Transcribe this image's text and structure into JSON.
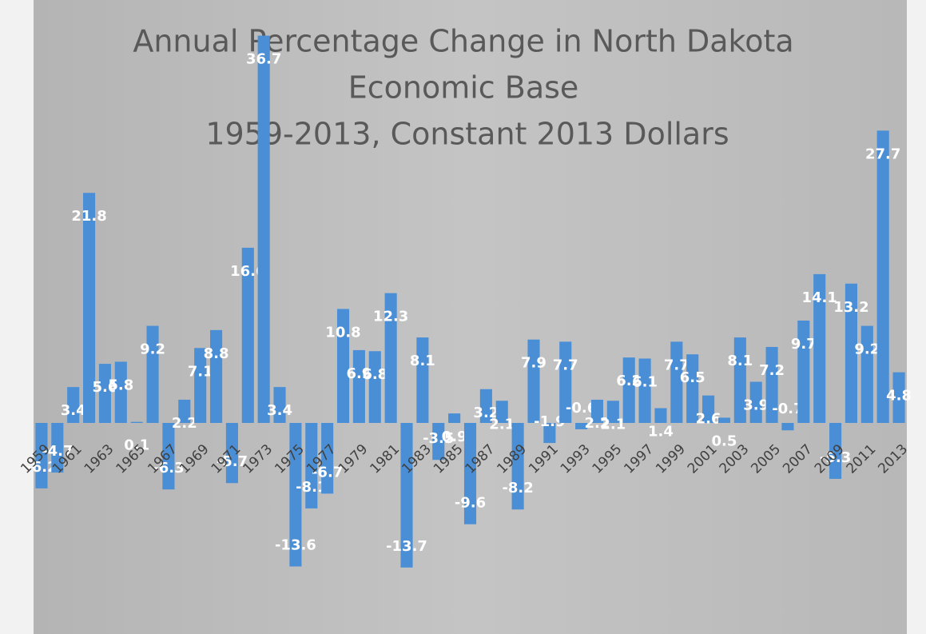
{
  "chart_data": {
    "type": "bar",
    "title": [
      "Annual Percentage Change in North Dakota",
      "Economic Base",
      "1959-2013, Constant 2013 Dollars"
    ],
    "categories": [
      "1959",
      null,
      "1961",
      null,
      "1963",
      null,
      "1965",
      null,
      "1967",
      null,
      "1969",
      null,
      "1971",
      null,
      "1973",
      null,
      "1975",
      null,
      "1977",
      null,
      "1979",
      null,
      "1981",
      null,
      "1983",
      null,
      "1985",
      null,
      "1987",
      null,
      "1989",
      null,
      "1991",
      null,
      "1993",
      null,
      "1995",
      null,
      "1997",
      null,
      "1999",
      null,
      "2001",
      null,
      "2003",
      null,
      "2005",
      null,
      "2007",
      null,
      "2009",
      null,
      "2011",
      null,
      "2013"
    ],
    "values": [
      -6.2,
      -4.7,
      3.4,
      21.8,
      5.6,
      5.8,
      0.1,
      9.2,
      -6.3,
      2.2,
      7.1,
      8.8,
      -5.7,
      16.6,
      36.7,
      3.4,
      -13.6,
      -8.1,
      -6.7,
      10.8,
      6.9,
      6.8,
      12.3,
      -13.7,
      8.1,
      -3.5,
      0.9,
      -9.6,
      3.2,
      2.1,
      -8.2,
      7.9,
      -1.9,
      7.7,
      -0.6,
      2.2,
      2.1,
      6.2,
      6.1,
      1.4,
      7.7,
      6.5,
      2.6,
      0.5,
      8.1,
      3.9,
      7.2,
      -0.7,
      9.7,
      14.1,
      -5.3,
      13.2,
      9.2,
      27.7,
      4.8
    ],
    "color": "#4a8fd6",
    "ylim": [
      -20,
      40
    ]
  }
}
